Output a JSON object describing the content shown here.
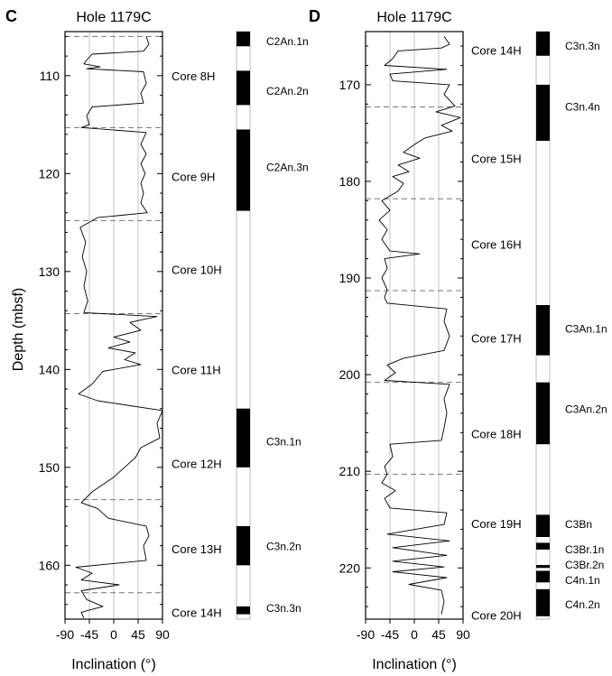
{
  "chart_data": [
    {
      "panel_letter": "C",
      "title": "Hole 1179C",
      "type": "line",
      "ylabel": "Depth (mbsf)",
      "xlabel": "Inclination (°)",
      "xlim": [
        -90,
        90
      ],
      "ylim": [
        105.5,
        165.5
      ],
      "x_ticks": [
        "-90",
        "-45",
        "0",
        "45",
        "90"
      ],
      "y_ticks": [
        110,
        120,
        130,
        140,
        150,
        160
      ],
      "y_tick_labels": [
        "110",
        "120",
        "130",
        "140",
        "150",
        "160"
      ],
      "gridlines_x": [
        -45,
        0,
        45
      ],
      "core_breaks": [
        106,
        115.3,
        124.8,
        134.3,
        153.3,
        162.8
      ],
      "cores": [
        {
          "label": "Core 8H",
          "depth": 110
        },
        {
          "label": "Core 9H",
          "depth": 120.3
        },
        {
          "label": "Core 10H",
          "depth": 129.8
        },
        {
          "label": "Core 11H",
          "depth": 140
        },
        {
          "label": "Core 12H",
          "depth": 149.6
        },
        {
          "label": "Core 13H",
          "depth": 158.3
        },
        {
          "label": "Core 14H",
          "depth": 164.8
        }
      ],
      "polarity_zones": [
        {
          "top": 105.5,
          "bottom": 107,
          "label": "C2An.1n",
          "label_depth": 106.4
        },
        {
          "top": 109.5,
          "bottom": 113,
          "label": "C2An.2n",
          "label_depth": 111.5
        },
        {
          "top": 115.5,
          "bottom": 123.8,
          "label": "C2An.3n",
          "label_depth": 119.3
        },
        {
          "top": 144,
          "bottom": 150,
          "label": "C3n.1n",
          "label_depth": 147.3
        },
        {
          "top": 156,
          "bottom": 160,
          "label": "C3n.2n",
          "label_depth": 158
        },
        {
          "top": 164.2,
          "bottom": 165,
          "label": "C3n.3n",
          "label_depth": 164.3
        }
      ],
      "series": [
        {
          "values": [
            [
              60,
              106
            ],
            [
              65,
              106.8
            ],
            [
              55,
              107.5
            ],
            [
              -40,
              107.8
            ],
            [
              -50,
              108.4
            ],
            [
              -55,
              108.8
            ],
            [
              -25,
              109.1
            ],
            [
              -50,
              109.3
            ],
            [
              55,
              109.6
            ],
            [
              60,
              110.8
            ],
            [
              50,
              111.8
            ],
            [
              55,
              112.8
            ],
            [
              -40,
              113.2
            ],
            [
              -50,
              114.1
            ],
            [
              -45,
              115
            ],
            [
              -60,
              115.3
            ],
            [
              60,
              115.8
            ],
            [
              50,
              117
            ],
            [
              60,
              118
            ],
            [
              50,
              119
            ],
            [
              58,
              120
            ],
            [
              50,
              121
            ],
            [
              55,
              122
            ],
            [
              50,
              123
            ],
            [
              62,
              124
            ],
            [
              -30,
              124.5
            ],
            [
              -62,
              125.5
            ],
            [
              -52,
              127
            ],
            [
              -58,
              128.5
            ],
            [
              -50,
              130
            ],
            [
              -55,
              131.5
            ],
            [
              -48,
              133
            ],
            [
              -55,
              134.2
            ],
            [
              80,
              134.6
            ],
            [
              30,
              135.2
            ],
            [
              50,
              136
            ],
            [
              0,
              136.7
            ],
            [
              30,
              137.2
            ],
            [
              -10,
              137.8
            ],
            [
              40,
              138.3
            ],
            [
              20,
              139
            ],
            [
              50,
              139.5
            ],
            [
              -20,
              140.2
            ],
            [
              -40,
              141.5
            ],
            [
              -65,
              142.5
            ],
            [
              -30,
              143.2
            ],
            [
              90,
              144.2
            ],
            [
              80,
              145.5
            ],
            [
              85,
              147
            ],
            [
              50,
              148
            ],
            [
              40,
              149
            ],
            [
              20,
              150
            ],
            [
              0,
              151
            ],
            [
              -40,
              152.5
            ],
            [
              -60,
              153.6
            ],
            [
              -30,
              154.2
            ],
            [
              -10,
              155.2
            ],
            [
              60,
              156
            ],
            [
              65,
              157
            ],
            [
              55,
              158
            ],
            [
              60,
              159.5
            ],
            [
              -70,
              160.2
            ],
            [
              -40,
              160.8
            ],
            [
              -60,
              161.5
            ],
            [
              10,
              162
            ],
            [
              -60,
              162.6
            ],
            [
              -50,
              163.5
            ],
            [
              -20,
              164.2
            ],
            [
              -60,
              164.8
            ],
            [
              -55,
              165.4
            ]
          ]
        }
      ]
    },
    {
      "panel_letter": "D",
      "title": "Hole 1179C",
      "type": "line",
      "ylabel": "",
      "xlabel": "Inclination (°)",
      "xlim": [
        -90,
        90
      ],
      "ylim": [
        164.5,
        225.3
      ],
      "x_ticks": [
        "-90",
        "-45",
        "0",
        "45",
        "90"
      ],
      "y_ticks": [
        170,
        180,
        190,
        200,
        210,
        220
      ],
      "y_tick_labels": [
        "170",
        "180",
        "190",
        "200",
        "210",
        "220"
      ],
      "gridlines_x": [
        -45,
        0,
        45
      ],
      "core_breaks": [
        172.3,
        181.8,
        191.3,
        200.8,
        210.3
      ],
      "cores": [
        {
          "label": "Core 14H",
          "depth": 166.4
        },
        {
          "label": "Core 15H",
          "depth": 177.6
        },
        {
          "label": "Core 16H",
          "depth": 186.5
        },
        {
          "label": "Core 17H",
          "depth": 196.2
        },
        {
          "label": "Core 18H",
          "depth": 206.1
        },
        {
          "label": "Core 19H",
          "depth": 215.4
        },
        {
          "label": "Core 20H",
          "depth": 224.9
        }
      ],
      "polarity_zones": [
        {
          "top": 164.5,
          "bottom": 167,
          "label": "C3n.3n",
          "label_depth": 165.9
        },
        {
          "top": 170,
          "bottom": 175.8,
          "label": "C3n.4n",
          "label_depth": 172.2
        },
        {
          "top": 192.8,
          "bottom": 198,
          "label": "C3An.1n",
          "label_depth": 195.2
        },
        {
          "top": 200.8,
          "bottom": 207.2,
          "label": "C3An.2n",
          "label_depth": 203.5
        },
        {
          "top": 214.5,
          "bottom": 216.8,
          "label": "C3Bn",
          "label_depth": 215.4
        },
        {
          "top": 217.4,
          "bottom": 218.1,
          "label": "C3Br.1n",
          "label_depth": 218
        },
        {
          "top": 219.7,
          "bottom": 220,
          "label": "C3Br.2n",
          "label_depth": 219.6
        },
        {
          "top": 220.3,
          "bottom": 221.5,
          "label": "C4n.1n",
          "label_depth": 221.2
        },
        {
          "top": 222.2,
          "bottom": 225,
          "label": "C4n.2n",
          "label_depth": 223.7
        }
      ],
      "series": [
        {
          "values": [
            [
              55,
              165
            ],
            [
              65,
              165.8
            ],
            [
              50,
              166.2
            ],
            [
              -30,
              166.5
            ],
            [
              -40,
              167.3
            ],
            [
              -55,
              168
            ],
            [
              60,
              168.4
            ],
            [
              -45,
              168.9
            ],
            [
              -40,
              169.6
            ],
            [
              65,
              170
            ],
            [
              55,
              171
            ],
            [
              75,
              172.2
            ],
            [
              40,
              172.8
            ],
            [
              85,
              173.4
            ],
            [
              50,
              174.2
            ],
            [
              70,
              174.8
            ],
            [
              20,
              175.5
            ],
            [
              0,
              176.2
            ],
            [
              -20,
              177
            ],
            [
              10,
              177.6
            ],
            [
              -30,
              178.3
            ],
            [
              -10,
              179
            ],
            [
              -40,
              179.5
            ],
            [
              -20,
              180.2
            ],
            [
              -30,
              181
            ],
            [
              -60,
              182
            ],
            [
              -45,
              183
            ],
            [
              -65,
              184
            ],
            [
              -50,
              185
            ],
            [
              -60,
              186
            ],
            [
              -45,
              187.2
            ],
            [
              10,
              187.5
            ],
            [
              -55,
              188
            ],
            [
              -50,
              189
            ],
            [
              -60,
              190
            ],
            [
              -50,
              191.2
            ],
            [
              -55,
              192
            ],
            [
              -50,
              192.6
            ],
            [
              60,
              193.2
            ],
            [
              55,
              194.5
            ],
            [
              65,
              196
            ],
            [
              55,
              197.5
            ],
            [
              -20,
              198.3
            ],
            [
              -50,
              199
            ],
            [
              -35,
              199.8
            ],
            [
              -55,
              200.6
            ],
            [
              65,
              201
            ],
            [
              55,
              202.5
            ],
            [
              60,
              204
            ],
            [
              55,
              205.5
            ],
            [
              50,
              206.8
            ],
            [
              -45,
              207.2
            ],
            [
              -40,
              208.5
            ],
            [
              -55,
              209.5
            ],
            [
              -50,
              210.3
            ],
            [
              -60,
              211.2
            ],
            [
              -35,
              212
            ],
            [
              -55,
              212.8
            ],
            [
              -45,
              213.8
            ],
            [
              60,
              214.3
            ],
            [
              55,
              215.5
            ],
            [
              -50,
              216.5
            ],
            [
              65,
              217.2
            ],
            [
              -40,
              217.9
            ],
            [
              60,
              218.7
            ],
            [
              -40,
              219.3
            ],
            [
              55,
              219.9
            ],
            [
              -40,
              220.4
            ],
            [
              60,
              221
            ],
            [
              -10,
              221.7
            ],
            [
              50,
              222.3
            ],
            [
              55,
              223.5
            ],
            [
              50,
              224.8
            ]
          ]
        }
      ]
    }
  ]
}
